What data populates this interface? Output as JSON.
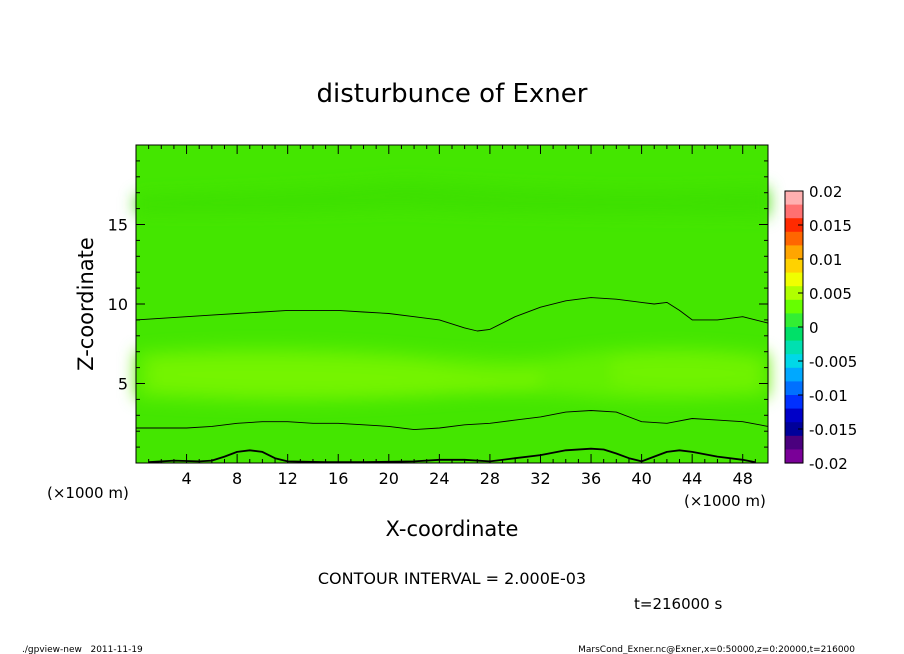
{
  "chart_data": {
    "type": "heatmap",
    "title": "disturbunce of Exner",
    "xlabel": "X-coordinate",
    "ylabel": "Z-coordinate",
    "x_unit": "(×1000 m)",
    "y_unit": "(×1000 m)",
    "xlim": [
      0,
      50
    ],
    "ylim": [
      0,
      20
    ],
    "x_ticks": [
      4,
      8,
      12,
      16,
      20,
      24,
      28,
      32,
      36,
      40,
      44,
      48
    ],
    "y_ticks": [
      5,
      10,
      15
    ],
    "colorbar": {
      "levels": [
        -0.02,
        -0.015,
        -0.01,
        -0.005,
        0,
        0.005,
        0.01,
        0.015,
        0.02
      ],
      "labels": [
        "0.02",
        "0.015",
        "0.01",
        "0.005",
        "0",
        "-0.005",
        "-0.01",
        "-0.015",
        "-0.02"
      ],
      "colors": [
        "#ffb0b0",
        "#ff7070",
        "#ff2a00",
        "#ff6600",
        "#ffa500",
        "#ffd200",
        "#f0ff00",
        "#b0ff00",
        "#66ff00",
        "#33ee33",
        "#00e068",
        "#00e0b0",
        "#00d8e8",
        "#00a8ff",
        "#0070ff",
        "#0030ff",
        "#0000c8",
        "#00009a",
        "#4a007e",
        "#7a0098"
      ]
    },
    "contour_lines": [
      {
        "x": [
          0,
          2,
          4,
          6,
          8,
          10,
          12,
          14,
          16,
          18,
          20,
          22,
          24,
          26,
          27,
          28,
          30,
          32,
          34,
          36,
          38,
          40,
          41,
          42,
          43,
          44,
          46,
          48,
          50
        ],
        "z": [
          9.0,
          9.1,
          9.2,
          9.3,
          9.4,
          9.5,
          9.6,
          9.6,
          9.6,
          9.5,
          9.4,
          9.2,
          9.0,
          8.5,
          8.3,
          8.4,
          9.2,
          9.8,
          10.2,
          10.4,
          10.3,
          10.1,
          10.0,
          10.1,
          9.6,
          9.0,
          9.0,
          9.2,
          8.8
        ]
      },
      {
        "x": [
          0,
          2,
          4,
          6,
          8,
          10,
          12,
          14,
          16,
          18,
          20,
          22,
          24,
          26,
          28,
          30,
          32,
          34,
          36,
          38,
          40,
          42,
          44,
          46,
          48,
          50
        ],
        "z": [
          2.2,
          2.2,
          2.2,
          2.3,
          2.5,
          2.6,
          2.6,
          2.5,
          2.5,
          2.4,
          2.3,
          2.1,
          2.2,
          2.4,
          2.5,
          2.7,
          2.9,
          3.2,
          3.3,
          3.2,
          2.6,
          2.5,
          2.8,
          2.7,
          2.6,
          2.3
        ]
      },
      {
        "x": [
          1,
          3,
          5,
          6,
          7,
          8,
          9,
          10,
          11,
          12,
          15,
          18,
          22,
          24,
          26,
          28,
          30,
          32,
          34,
          36,
          37,
          38,
          39,
          40,
          41,
          42,
          43,
          44,
          46,
          48,
          49
        ],
        "z": [
          0.05,
          0.15,
          0.1,
          0.15,
          0.4,
          0.7,
          0.8,
          0.7,
          0.3,
          0.1,
          0.05,
          0.05,
          0.1,
          0.2,
          0.2,
          0.1,
          0.3,
          0.5,
          0.8,
          0.9,
          0.85,
          0.6,
          0.3,
          0.1,
          0.4,
          0.7,
          0.8,
          0.7,
          0.4,
          0.2,
          0.05
        ]
      }
    ],
    "annotation": "CONTOUR INTERVAL = 2.000E-03",
    "time_label": "t=216000 s"
  },
  "footer": {
    "left": "./gpview-new   2011-11-19",
    "right": "MarsCond_Exner.nc@Exner,x=0:50000,z=0:20000,t=216000"
  }
}
